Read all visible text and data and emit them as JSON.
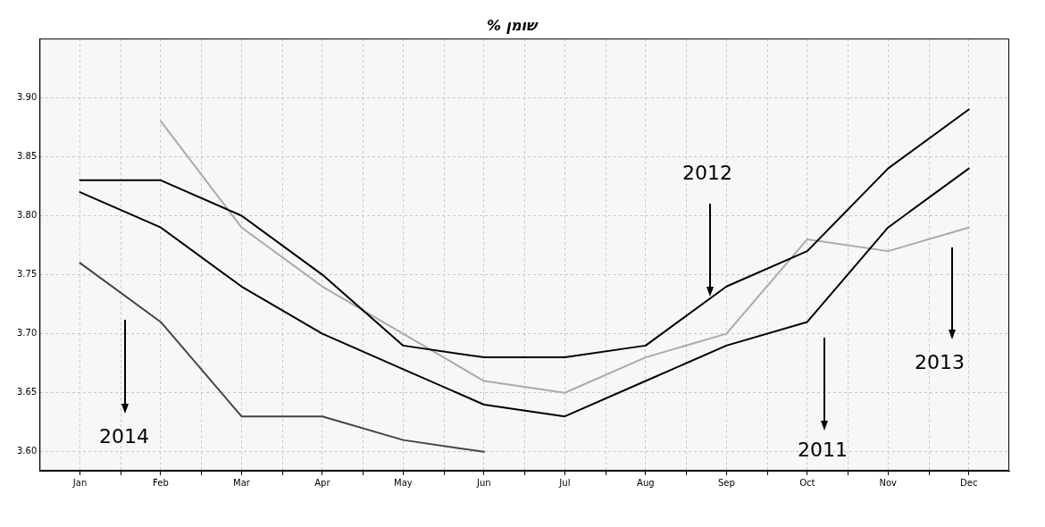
{
  "chart_data": {
    "type": "line",
    "title": "% שומן",
    "categories": [
      "Jan",
      "Feb",
      "Mar",
      "Apr",
      "May",
      "Jun",
      "Jul",
      "Aug",
      "Sep",
      "Oct",
      "Nov",
      "Dec"
    ],
    "series": [
      {
        "color": "#000000",
        "values": [
          3.83,
          3.83,
          3.8,
          3.75,
          3.69,
          3.68,
          3.68,
          3.69,
          3.74,
          3.77,
          3.84,
          3.89
        ]
      },
      {
        "color": "#000000",
        "values": [
          3.82,
          3.79,
          3.74,
          3.7,
          3.67,
          3.64,
          3.63,
          3.66,
          3.69,
          3.71,
          3.79,
          3.84
        ]
      },
      {
        "color": "#aaaaaa",
        "values": [
          null,
          3.88,
          3.79,
          3.74,
          3.7,
          3.66,
          3.65,
          3.68,
          3.7,
          3.78,
          3.77,
          3.79
        ]
      },
      {
        "color": "#444444",
        "values": [
          3.76,
          3.71,
          3.63,
          3.63,
          3.61,
          3.6,
          null,
          null,
          null,
          null,
          null,
          null
        ]
      }
    ],
    "ylim": [
      3.584,
      3.95
    ],
    "yticks": [
      {
        "value": 3.6,
        "label": "3.60"
      },
      {
        "value": 3.65,
        "label": "3.65"
      },
      {
        "value": 3.7,
        "label": "3.70"
      },
      {
        "value": 3.75,
        "label": "3.75"
      },
      {
        "value": 3.8,
        "label": "3.80"
      },
      {
        "value": 3.85,
        "label": "3.85"
      },
      {
        "value": 3.9,
        "label": "3.90"
      }
    ],
    "annotations": [
      "2012",
      "2011",
      "2013",
      "2014"
    ],
    "grid": true,
    "legend": false,
    "marker": "none",
    "line_style": "solid"
  }
}
